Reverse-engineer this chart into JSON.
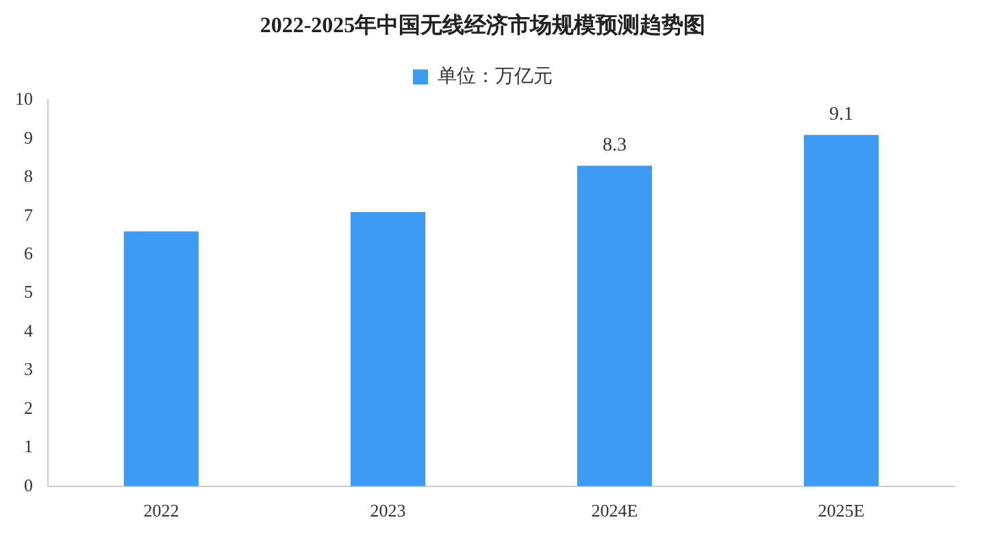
{
  "chart_data": {
    "type": "bar",
    "title": "2022-2025年中国无线经济市场规模预测趋势图",
    "categories": [
      "2022",
      "2023",
      "2024E",
      "2025E"
    ],
    "series": [
      {
        "name": "单位：万亿元",
        "color": "#3d9bf3",
        "values": [
          6.6,
          7.1,
          8.3,
          9.1
        ],
        "value_labels": [
          null,
          null,
          "8.3",
          "9.1"
        ]
      }
    ],
    "ylim": [
      0,
      10
    ],
    "yticks": [
      0,
      1,
      2,
      3,
      4,
      5,
      6,
      7,
      8,
      9,
      10
    ],
    "grid": false,
    "legend": "top"
  }
}
